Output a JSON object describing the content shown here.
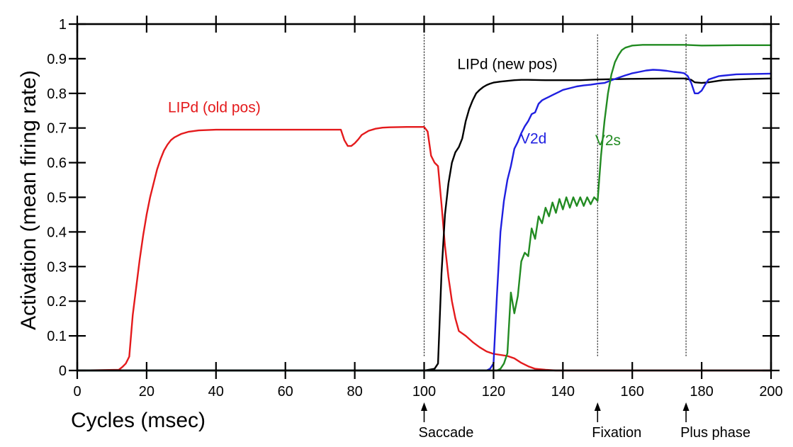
{
  "chart_data": {
    "type": "line",
    "xlabel": "Cycles (msec)",
    "ylabel": "Activation (mean firing rate)",
    "xlim": [
      0,
      200
    ],
    "ylim": [
      0,
      1
    ],
    "xticks": [
      0,
      20,
      40,
      60,
      80,
      100,
      120,
      140,
      160,
      180,
      200
    ],
    "yticks": [
      0,
      0.1,
      0.2,
      0.3,
      0.4,
      0.5,
      0.6,
      0.7,
      0.8,
      0.9,
      1
    ],
    "xtick_labels": [
      "0",
      "20",
      "40",
      "60",
      "80",
      "100",
      "120",
      "140",
      "160",
      "180",
      "200"
    ],
    "ytick_labels": [
      "0",
      "0.1",
      "0.2",
      "0.3",
      "0.4",
      "0.5",
      "0.6",
      "0.7",
      "0.8",
      "0.9",
      "1"
    ],
    "grid": false,
    "events": [
      {
        "x": 100,
        "label": "Saccade"
      },
      {
        "x": 150,
        "label": "Fixation"
      },
      {
        "x": 175.5,
        "label": "Plus phase"
      }
    ],
    "series": [
      {
        "name": "LIPd (old pos)",
        "color": "#e41a1c",
        "label_at": [
          39.5,
          0.745
        ],
        "x": [
          0,
          12,
          13,
          14,
          15,
          16,
          17,
          18,
          19,
          20,
          21,
          22,
          23,
          24,
          25,
          26,
          27,
          28,
          30,
          32,
          35,
          40,
          45,
          50,
          60,
          70,
          76,
          77,
          78,
          79,
          80,
          81,
          82,
          84,
          86,
          88,
          90,
          95,
          100,
          101,
          102,
          103,
          104,
          105,
          106,
          107,
          108,
          109,
          110,
          112,
          114,
          116,
          118,
          120,
          122,
          124,
          126,
          128,
          130,
          132,
          135,
          138,
          140,
          150,
          160,
          170,
          180,
          190,
          200
        ],
        "y": [
          0,
          0.002,
          0.01,
          0.02,
          0.04,
          0.16,
          0.24,
          0.32,
          0.39,
          0.45,
          0.5,
          0.54,
          0.58,
          0.61,
          0.635,
          0.652,
          0.665,
          0.673,
          0.683,
          0.689,
          0.693,
          0.695,
          0.695,
          0.695,
          0.695,
          0.695,
          0.695,
          0.665,
          0.648,
          0.648,
          0.656,
          0.667,
          0.68,
          0.692,
          0.698,
          0.701,
          0.702,
          0.703,
          0.703,
          0.69,
          0.62,
          0.6,
          0.59,
          0.48,
          0.36,
          0.27,
          0.2,
          0.15,
          0.114,
          0.1,
          0.082,
          0.067,
          0.055,
          0.048,
          0.045,
          0.042,
          0.035,
          0.022,
          0.012,
          0.005,
          0.002,
          0,
          0,
          0,
          0,
          0,
          0,
          0,
          0
        ]
      },
      {
        "name": "LIPd (new pos)",
        "color": "#000000",
        "label_at": [
          124,
          0.87
        ],
        "x": [
          0,
          100,
          103,
          104,
          105,
          106,
          107,
          108,
          109,
          110,
          111,
          112,
          113,
          114,
          115,
          116,
          117,
          118,
          119,
          120,
          122,
          124,
          126,
          128,
          130,
          135,
          140,
          145,
          150,
          160,
          170,
          175,
          177,
          178,
          180,
          182,
          184,
          186,
          190,
          195,
          200
        ],
        "y": [
          0,
          0,
          0.005,
          0.02,
          0.28,
          0.45,
          0.54,
          0.6,
          0.63,
          0.645,
          0.67,
          0.72,
          0.755,
          0.78,
          0.8,
          0.81,
          0.818,
          0.824,
          0.828,
          0.831,
          0.834,
          0.836,
          0.838,
          0.839,
          0.839,
          0.838,
          0.838,
          0.838,
          0.84,
          0.842,
          0.843,
          0.843,
          0.839,
          0.832,
          0.83,
          0.832,
          0.835,
          0.838,
          0.84,
          0.842,
          0.843
        ]
      },
      {
        "name": "V2d",
        "color": "#1f1fe0",
        "label_at": [
          131.5,
          0.655
        ],
        "x": [
          0,
          118,
          119,
          120,
          121,
          122,
          123,
          124,
          125,
          126,
          127,
          128,
          129,
          130,
          131,
          132,
          133,
          134,
          135,
          136,
          137,
          138,
          139,
          140,
          142,
          144,
          146,
          148,
          150,
          152,
          154,
          156,
          158,
          160,
          162,
          164,
          166,
          168,
          170,
          172,
          174,
          175,
          176,
          177,
          178,
          179,
          180,
          181,
          182,
          185,
          190,
          200
        ],
        "y": [
          0,
          0,
          0.005,
          0.02,
          0.22,
          0.4,
          0.49,
          0.55,
          0.59,
          0.64,
          0.66,
          0.685,
          0.705,
          0.72,
          0.74,
          0.745,
          0.77,
          0.78,
          0.785,
          0.79,
          0.795,
          0.8,
          0.805,
          0.81,
          0.815,
          0.82,
          0.823,
          0.825,
          0.828,
          0.83,
          0.838,
          0.845,
          0.852,
          0.858,
          0.862,
          0.866,
          0.868,
          0.867,
          0.865,
          0.862,
          0.86,
          0.858,
          0.85,
          0.83,
          0.8,
          0.8,
          0.808,
          0.825,
          0.84,
          0.85,
          0.855,
          0.857
        ]
      },
      {
        "name": "V2s",
        "color": "#228b22",
        "label_at": [
          153,
          0.65
        ],
        "x": [
          0,
          121,
          122,
          123,
          124,
          125,
          126,
          127,
          128,
          129,
          130,
          131,
          132,
          133,
          134,
          135,
          136,
          137,
          138,
          139,
          140,
          141,
          142,
          143,
          144,
          145,
          146,
          147,
          148,
          149,
          150,
          151,
          152,
          153,
          154,
          155,
          156,
          157,
          158,
          160,
          163,
          166,
          170,
          175,
          180,
          190,
          200
        ],
        "y": [
          0,
          0,
          0.005,
          0.02,
          0.05,
          0.225,
          0.165,
          0.215,
          0.315,
          0.34,
          0.33,
          0.41,
          0.38,
          0.445,
          0.425,
          0.47,
          0.445,
          0.485,
          0.455,
          0.495,
          0.465,
          0.5,
          0.47,
          0.5,
          0.475,
          0.5,
          0.475,
          0.5,
          0.48,
          0.5,
          0.49,
          0.62,
          0.72,
          0.8,
          0.855,
          0.89,
          0.91,
          0.925,
          0.932,
          0.938,
          0.94,
          0.94,
          0.94,
          0.94,
          0.938,
          0.939,
          0.939
        ]
      }
    ]
  }
}
